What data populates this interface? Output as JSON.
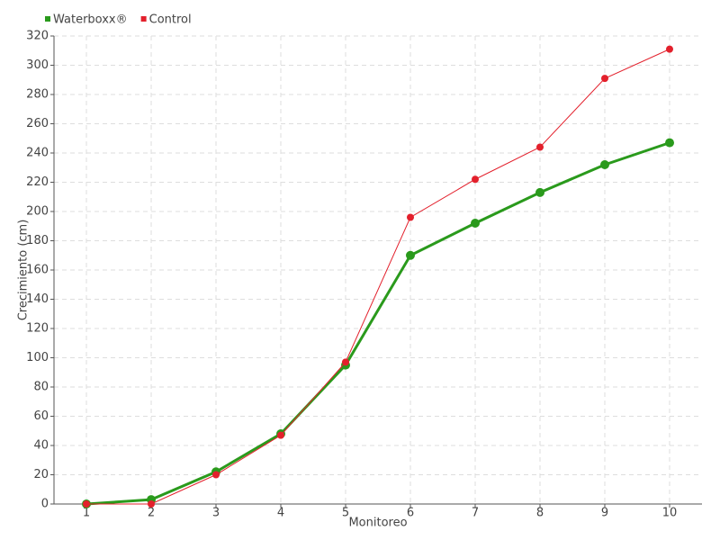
{
  "chart_data": {
    "type": "line",
    "x": [
      1,
      2,
      3,
      4,
      5,
      6,
      7,
      8,
      9,
      10
    ],
    "xlabel": "Monitoreo",
    "ylabel": "Crecimiento (cm)",
    "series": [
      {
        "name": "Waterboxx®",
        "color": "#2a9a1c",
        "values": [
          0,
          3,
          22,
          48,
          95,
          170,
          192,
          213,
          232,
          247
        ]
      },
      {
        "name": "Control",
        "color": "#e3202c",
        "values": [
          0,
          0,
          20,
          47,
          97,
          196,
          222,
          244,
          291,
          311
        ]
      }
    ],
    "xlim": [
      0.5,
      10.5
    ],
    "xticks": [
      1,
      2,
      3,
      4,
      5,
      6,
      7,
      8,
      9,
      10
    ],
    "ylim": [
      0,
      320
    ],
    "yticks": [
      0,
      20,
      40,
      60,
      80,
      100,
      120,
      140,
      160,
      180,
      200,
      220,
      240,
      260,
      280,
      300,
      320
    ],
    "grid": true,
    "legend": "top-left"
  }
}
